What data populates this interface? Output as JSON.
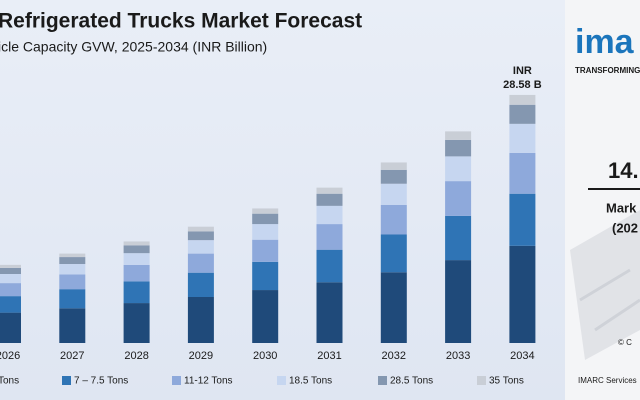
{
  "chart_data": {
    "type": "bar",
    "stacked": true,
    "title": "Refrigerated Trucks Market Forecast",
    "subtitle": "icle Capacity GVW, 2025-2034 (INR Billion)",
    "annotation": "INR 28.58 B",
    "categories": [
      "2026",
      "2027",
      "2028",
      "2029",
      "2030",
      "2031",
      "2032",
      "2033",
      "2034"
    ],
    "series": [
      {
        "name": "Tons",
        "color": "#1f4a7a",
        "values": [
          3.5,
          4.0,
          4.6,
          5.3,
          6.1,
          7.0,
          8.15,
          9.55,
          11.2
        ]
      },
      {
        "name": "7 – 7.5 Tons",
        "color": "#2f74b5",
        "values": [
          1.9,
          2.2,
          2.5,
          2.8,
          3.25,
          3.75,
          4.35,
          5.1,
          6.0
        ]
      },
      {
        "name": "11-12 Tons",
        "color": "#8ea9db",
        "values": [
          1.5,
          1.7,
          1.9,
          2.2,
          2.55,
          2.95,
          3.4,
          4.0,
          4.7
        ]
      },
      {
        "name": "18.5 Tons",
        "color": "#c6d6f0",
        "values": [
          1.05,
          1.2,
          1.35,
          1.55,
          1.8,
          2.1,
          2.45,
          2.85,
          3.35
        ]
      },
      {
        "name": "28.5 Tons",
        "color": "#8497b0",
        "values": [
          0.7,
          0.8,
          0.9,
          1.0,
          1.2,
          1.4,
          1.6,
          1.9,
          2.2
        ]
      },
      {
        "name": "35 Tons",
        "color": "#c9ced6",
        "values": [
          0.35,
          0.4,
          0.45,
          0.55,
          0.6,
          0.7,
          0.85,
          0.98,
          1.13
        ]
      }
    ]
  },
  "right_panel": {
    "logo": "ima",
    "tagline": "TRANSFORMING",
    "stat": "14.",
    "stat_label": "Mark",
    "stat_period": "(202",
    "copyright": "© C",
    "source": "IMARC Services"
  }
}
